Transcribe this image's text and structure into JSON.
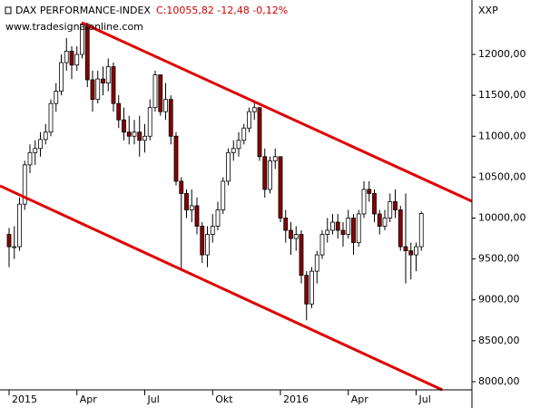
{
  "chart_data": {
    "type": "candlestick",
    "title": "DAX PERFORMANCE-INDEX",
    "quote": "C:10055,82 -12,48 -0,12%",
    "subtitle": "www.tradesignalonline.com",
    "axis_label": "XXP",
    "categories": [
      "2015",
      null,
      null,
      null,
      null,
      null,
      null,
      null,
      null,
      null,
      null,
      null,
      null,
      "Apr",
      null,
      null,
      null,
      null,
      null,
      null,
      null,
      null,
      null,
      null,
      null,
      null,
      "Jul",
      null,
      null,
      null,
      null,
      null,
      null,
      null,
      null,
      null,
      null,
      null,
      null,
      "Okt",
      null,
      null,
      null,
      null,
      null,
      null,
      null,
      null,
      null,
      null,
      null,
      null,
      "2016",
      null,
      null,
      null,
      null,
      null,
      null,
      null,
      null,
      null,
      null,
      null,
      null,
      "Apr",
      null,
      null,
      null,
      null,
      null,
      null,
      null,
      null,
      null,
      null,
      null,
      null,
      "Jul",
      null
    ],
    "open": [
      9800,
      9650,
      9650,
      10170,
      10650,
      10800,
      10850,
      10960,
      11050,
      11400,
      11550,
      11900,
      12040,
      11870,
      12000,
      12370,
      11690,
      11450,
      11700,
      11650,
      11850,
      11400,
      11200,
      11050,
      11000,
      11050,
      10950,
      11000,
      11350,
      11750,
      11300,
      11450,
      11000,
      10450,
      10300,
      10100,
      10150,
      9900,
      9550,
      9800,
      9900,
      10100,
      10450,
      10800,
      10850,
      10950,
      11100,
      11300,
      11350,
      10750,
      10350,
      10700,
      10750,
      10000,
      9850,
      9750,
      9800,
      9300,
      8950,
      9350,
      9550,
      9800,
      9850,
      9950,
      9850,
      9800,
      10000,
      9700,
      10050,
      10350,
      10300,
      10050,
      9900,
      10000,
      10200,
      10100,
      9650,
      9600,
      9550,
      9650
    ],
    "high": [
      9880,
      9900,
      10250,
      10700,
      10900,
      10950,
      11050,
      11150,
      11450,
      11650,
      12000,
      12200,
      12100,
      12100,
      12390,
      12380,
      11800,
      11800,
      11850,
      11950,
      11900,
      11500,
      11350,
      11250,
      11200,
      11250,
      11150,
      11450,
      11800,
      11750,
      11650,
      11500,
      11050,
      10500,
      10350,
      10350,
      10250,
      9950,
      9900,
      10050,
      10200,
      10500,
      10850,
      10950,
      11050,
      11150,
      11350,
      11430,
      11350,
      10850,
      10750,
      10850,
      10750,
      10100,
      9950,
      9900,
      9850,
      9350,
      9400,
      9600,
      9850,
      10000,
      10050,
      10050,
      9950,
      10100,
      10050,
      10100,
      10450,
      10450,
      10350,
      10100,
      10100,
      10300,
      10350,
      10150,
      10300,
      9700,
      9700,
      10080
    ],
    "low": [
      9400,
      9500,
      9600,
      10100,
      10550,
      10650,
      10750,
      10900,
      11000,
      11300,
      11500,
      11800,
      11700,
      11800,
      11950,
      11600,
      11300,
      11400,
      11500,
      11550,
      11300,
      11100,
      10950,
      10900,
      10900,
      10750,
      10800,
      10950,
      11300,
      11250,
      11200,
      10900,
      10400,
      9350,
      10000,
      9950,
      9800,
      9450,
      9400,
      9700,
      9850,
      10050,
      10400,
      10700,
      10750,
      10900,
      11050,
      11200,
      10700,
      10250,
      10300,
      10600,
      9950,
      9700,
      9550,
      9600,
      9200,
      8750,
      8900,
      9200,
      9500,
      9700,
      9800,
      9750,
      9650,
      9750,
      9550,
      9650,
      10000,
      10200,
      9950,
      9800,
      9850,
      9950,
      10000,
      9600,
      9200,
      9250,
      9350,
      9600
    ],
    "close": [
      9650,
      9650,
      10170,
      10650,
      10800,
      10850,
      10960,
      11050,
      11400,
      11550,
      11900,
      12040,
      11870,
      12000,
      12370,
      11690,
      11450,
      11700,
      11650,
      11850,
      11400,
      11200,
      11050,
      11000,
      11050,
      10950,
      11000,
      11350,
      11750,
      11300,
      11450,
      11000,
      10450,
      10300,
      10100,
      10150,
      9900,
      9550,
      9800,
      9900,
      10100,
      10450,
      10800,
      10850,
      10950,
      11100,
      11300,
      11350,
      10750,
      10350,
      10700,
      10750,
      10000,
      9850,
      9750,
      9800,
      9300,
      8950,
      9350,
      9550,
      9800,
      9850,
      9950,
      9850,
      9800,
      10000,
      9700,
      10050,
      10350,
      10300,
      10050,
      9900,
      10000,
      10200,
      10100,
      9650,
      9600,
      9550,
      9650,
      10056
    ],
    "up_color": "#ffffff",
    "down_color": "#8b0000",
    "line_color": "#e00000",
    "trendlines": [
      {
        "x": [
          13.9,
          88.7
        ],
        "y": [
          12388,
          10205
        ]
      },
      {
        "x": [
          -1.74,
          83
        ],
        "y": [
          10393,
          7900
        ]
      }
    ],
    "ylim": [
      7900,
      12665
    ],
    "yticks": [
      {
        "value": 8000,
        "label": "8000,00"
      },
      {
        "value": 8500,
        "label": "8500,00"
      },
      {
        "value": 9000,
        "label": "9000,00"
      },
      {
        "value": 9500,
        "label": "9500,00"
      },
      {
        "value": 10000,
        "label": "10000,00"
      },
      {
        "value": 10500,
        "label": "10500,00"
      },
      {
        "value": 11000,
        "label": "11000,00"
      },
      {
        "value": 11500,
        "label": "11500,00"
      },
      {
        "value": 12000,
        "label": "12000,00"
      }
    ]
  }
}
